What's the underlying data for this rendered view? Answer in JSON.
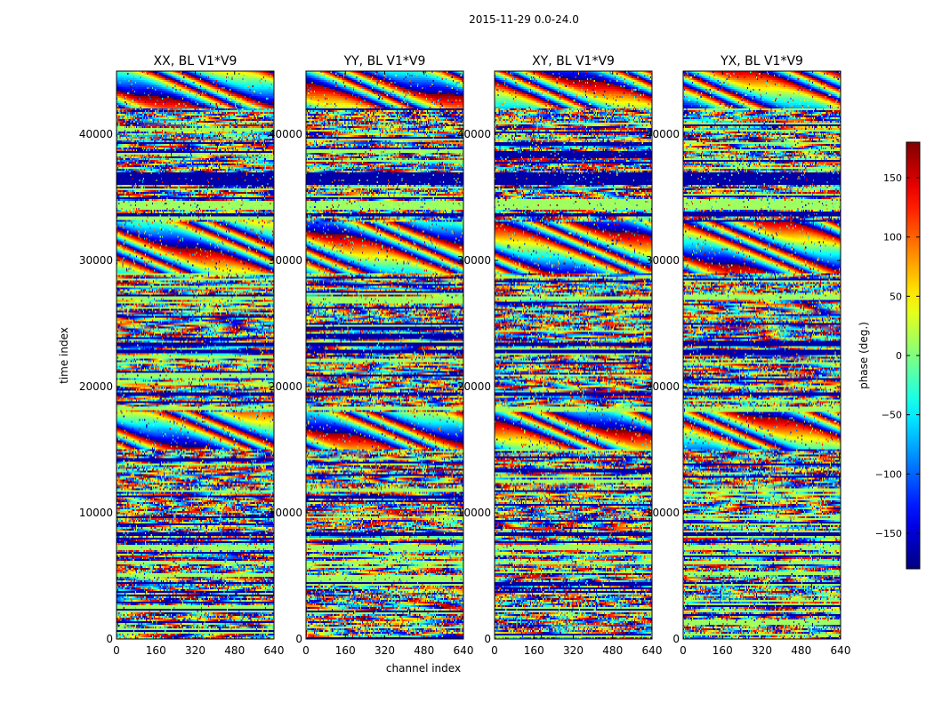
{
  "suptitle": "2015-11-29 0.0-24.0",
  "chart_data": {
    "type": "heatmap",
    "xlabel": "channel index",
    "ylabel": "time index",
    "xlim": [
      0,
      640
    ],
    "ylim": [
      0,
      45000
    ],
    "xticks": [
      0,
      160,
      320,
      480,
      640
    ],
    "yticks": [
      0,
      10000,
      20000,
      30000,
      40000
    ],
    "panels": [
      {
        "title": "XX, BL V1*V9"
      },
      {
        "title": "YY, BL V1*V9"
      },
      {
        "title": "XY, BL V1*V9"
      },
      {
        "title": "YX, BL V1*V9"
      }
    ],
    "colorbar": {
      "label": "phase (deg.)",
      "range": [
        -180,
        180
      ],
      "ticks": [
        -150,
        -100,
        -50,
        0,
        50,
        100,
        150
      ],
      "colormap": "jet"
    },
    "notable_rows": {
      "solid_dark_blue_bands": [
        [
          36000,
          37000
        ],
        [
          33400,
          33700
        ],
        [
          23200,
          23500
        ],
        [
          22700,
          22900
        ],
        [
          19300,
          19500
        ],
        [
          8100,
          8500
        ],
        [
          7600,
          7800
        ],
        [
          4300,
          4500
        ]
      ],
      "solid_light_green_bands": [
        [
          34000,
          34800
        ],
        [
          26900,
          27100
        ],
        [
          18100,
          18400
        ],
        [
          7000,
          7500
        ],
        [
          5900,
          6200
        ]
      ],
      "strong_fringe_bands": [
        [
          15000,
          18000
        ],
        [
          29000,
          33000
        ],
        [
          42000,
          45000
        ]
      ]
    }
  }
}
